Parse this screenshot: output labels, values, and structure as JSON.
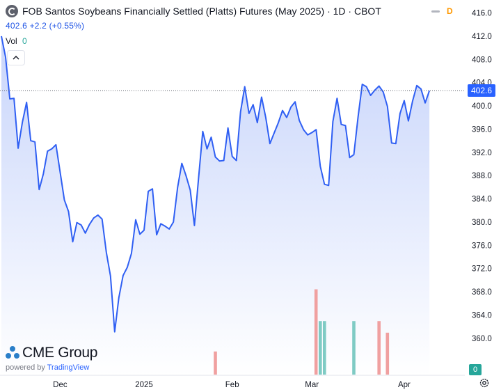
{
  "header": {
    "title": "FOB Santos Soybeans Financially Settled (Platts) Futures (May 2025) · 1D · CBOT",
    "delayed_badge": "D",
    "quote": "402.6  +2.2 (+0.55%)",
    "vol_label": "Vol",
    "vol_value": "0"
  },
  "price_tag": "402.6",
  "volume_tag": "0",
  "branding": {
    "name": "CME Group",
    "powered_prefix": "powered by",
    "powered_brand": "TradingView"
  },
  "colors": {
    "line": "#2f5ff3",
    "area_top": "#c8d5fb",
    "area_bottom": "#ffffff",
    "vol_up": "#7fcbc4",
    "vol_down": "#f0a0a0",
    "accent": "#2962ff"
  },
  "icons": [
    "symbol-icon",
    "collapse-chevron-icon",
    "settings-gear-icon"
  ],
  "chart_data": {
    "type": "area",
    "title": "",
    "xlabel": "",
    "ylabel": "",
    "ylim": [
      356,
      417
    ],
    "yticks": [
      360.0,
      364.0,
      368.0,
      372.0,
      376.0,
      380.0,
      384.0,
      388.0,
      392.0,
      396.0,
      400.0,
      404.0,
      408.0,
      412.0,
      416.0
    ],
    "xticks": [
      {
        "label": "Dec",
        "index": 14
      },
      {
        "label": "2025",
        "index": 34
      },
      {
        "label": "Feb",
        "index": 55
      },
      {
        "label": "Mar",
        "index": 74
      },
      {
        "label": "Apr",
        "index": 96
      }
    ],
    "grid": false,
    "series": [
      {
        "values": [
          412.0,
          408.4,
          401.2,
          401.3,
          392.7,
          397.2,
          400.6,
          394.0,
          393.8,
          385.6,
          388.3,
          392.2,
          392.6,
          393.3,
          388.6,
          383.8,
          381.8,
          376.6,
          379.9,
          379.5,
          378.1,
          379.6,
          380.7,
          381.2,
          380.5,
          374.8,
          370.7,
          361.1,
          367.0,
          370.8,
          372.2,
          374.6,
          380.4,
          377.9,
          378.6,
          385.3,
          385.7,
          377.8,
          379.7,
          379.3,
          378.8,
          380.0,
          386.0,
          390.1,
          388.0,
          385.5,
          379.4,
          387.6,
          395.6,
          392.6,
          394.6,
          391.2,
          390.5,
          390.6,
          396.2,
          391.3,
          390.6,
          399.0,
          403.3,
          398.7,
          400.2,
          397.1,
          401.5,
          398.0,
          393.5,
          395.3,
          397.1,
          399.2,
          398.0,
          399.8,
          400.7,
          397.5,
          395.9,
          395.0,
          395.4,
          395.9,
          389.6,
          386.5,
          386.3,
          397.3,
          401.3,
          396.8,
          396.6,
          391.1,
          391.6,
          398.1,
          403.7,
          403.3,
          401.8,
          402.7,
          403.4,
          402.4,
          399.9,
          393.6,
          393.5,
          398.7,
          400.9,
          397.4,
          400.8,
          403.5,
          402.9,
          400.5,
          402.6
        ]
      }
    ],
    "volume": {
      "type": "bar",
      "bars": [
        {
          "index": 51,
          "value": 1.6,
          "direction": "down"
        },
        {
          "index": 75,
          "value": 5.9,
          "direction": "down"
        },
        {
          "index": 76,
          "value": 3.7,
          "direction": "up"
        },
        {
          "index": 77,
          "value": 3.7,
          "direction": "up"
        },
        {
          "index": 84,
          "value": 3.7,
          "direction": "up"
        },
        {
          "index": 90,
          "value": 3.7,
          "direction": "down"
        },
        {
          "index": 92,
          "value": 2.9,
          "direction": "down"
        }
      ],
      "ylim": [
        0,
        6.5
      ]
    }
  }
}
